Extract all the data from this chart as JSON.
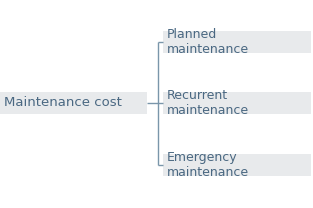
{
  "root_label": "Maintenance cost",
  "branches": [
    "Planned\nmaintenance",
    "Recurrent\nmaintenance",
    "Emergency\nmaintenance"
  ],
  "text_color": "#4a6882",
  "bg_color": "#ffffff",
  "band_color": "#e8eaec",
  "line_color": "#7a96aa",
  "root_font_size": 9.5,
  "branch_font_size": 9.0,
  "fig_width": 3.13,
  "fig_height": 2.08,
  "dpi": 100
}
